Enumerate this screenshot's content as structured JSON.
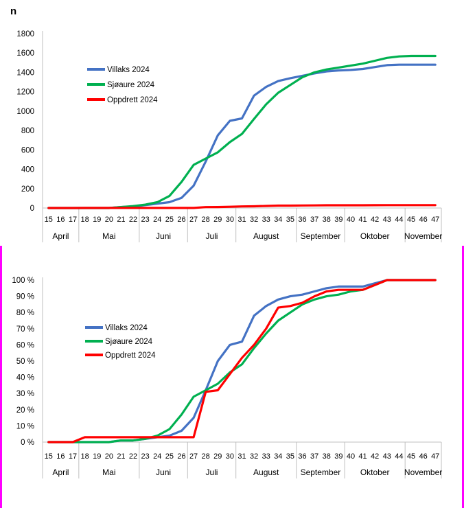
{
  "page": {
    "background": "#FFFFFF",
    "selection_border_color": "#FF00FF",
    "axis_color": "#BFBFBF"
  },
  "chart_data": [
    {
      "type": "line",
      "y_axis_title": "n",
      "ylim": [
        0,
        1800
      ],
      "y_ticks": [
        "0",
        "200",
        "400",
        "600",
        "800",
        "1000",
        "1200",
        "1400",
        "1600",
        "1800"
      ],
      "week_labels": [
        "15",
        "16",
        "17",
        "18",
        "19",
        "20",
        "21",
        "22",
        "23",
        "24",
        "25",
        "26",
        "27",
        "28",
        "29",
        "30",
        "31",
        "32",
        "33",
        "34",
        "35",
        "36",
        "37",
        "38",
        "39",
        "40",
        "41",
        "42",
        "43",
        "44",
        "45",
        "46",
        "47"
      ],
      "month_groups": [
        {
          "label": "April",
          "span": 3
        },
        {
          "label": "Mai",
          "span": 5
        },
        {
          "label": "Juni",
          "span": 4
        },
        {
          "label": "Juli",
          "span": 4
        },
        {
          "label": "August",
          "span": 5
        },
        {
          "label": "September",
          "span": 4
        },
        {
          "label": "Oktober",
          "span": 5
        },
        {
          "label": "November",
          "span": 3
        }
      ],
      "legend_position": "upper-left-inside",
      "grid": false,
      "series": [
        {
          "name": "Villaks 2024",
          "color": "#4472C4",
          "values": [
            0,
            0,
            0,
            0,
            0,
            0,
            10,
            15,
            30,
            45,
            60,
            105,
            230,
            480,
            750,
            900,
            925,
            1160,
            1250,
            1310,
            1340,
            1365,
            1390,
            1410,
            1420,
            1425,
            1435,
            1455,
            1475,
            1480,
            1480,
            1480,
            1480
          ]
        },
        {
          "name": "Sjøaure 2024",
          "color": "#00B050",
          "values": [
            0,
            0,
            0,
            0,
            0,
            0,
            10,
            20,
            35,
            60,
            125,
            270,
            445,
            510,
            575,
            680,
            765,
            920,
            1070,
            1190,
            1270,
            1350,
            1400,
            1430,
            1450,
            1470,
            1490,
            1520,
            1550,
            1565,
            1570,
            1570,
            1570
          ]
        },
        {
          "name": "Oppdrett 2024",
          "color": "#FF0000",
          "values": [
            0,
            0,
            0,
            1,
            1,
            1,
            1,
            1,
            1,
            1,
            1,
            1,
            1,
            9,
            10,
            13,
            16,
            18,
            21,
            25,
            25,
            26,
            27,
            28,
            28,
            28,
            28,
            29,
            30,
            30,
            30,
            30,
            30
          ]
        }
      ]
    },
    {
      "type": "line",
      "y_axis_title": "",
      "ylim": [
        0,
        100
      ],
      "y_ticks": [
        "0 %",
        "10 %",
        "20 %",
        "30 %",
        "40 %",
        "50 %",
        "60 %",
        "70 %",
        "80 %",
        "90 %",
        "100 %"
      ],
      "week_labels": [
        "15",
        "16",
        "17",
        "18",
        "19",
        "20",
        "21",
        "22",
        "23",
        "24",
        "25",
        "26",
        "27",
        "28",
        "29",
        "30",
        "31",
        "32",
        "33",
        "34",
        "35",
        "36",
        "37",
        "38",
        "39",
        "40",
        "41",
        "42",
        "43",
        "44",
        "45",
        "46",
        "47"
      ],
      "month_groups": [
        {
          "label": "April",
          "span": 3
        },
        {
          "label": "Mai",
          "span": 5
        },
        {
          "label": "Juni",
          "span": 4
        },
        {
          "label": "Juli",
          "span": 4
        },
        {
          "label": "August",
          "span": 5
        },
        {
          "label": "September",
          "span": 4
        },
        {
          "label": "Oktober",
          "span": 5
        },
        {
          "label": "November",
          "span": 3
        }
      ],
      "legend_position": "upper-left-inside",
      "grid": false,
      "series": [
        {
          "name": "Villaks 2024",
          "color": "#4472C4",
          "values": [
            0,
            0,
            0,
            0,
            0,
            0,
            1,
            1,
            2,
            3,
            4,
            7,
            15,
            32,
            50,
            60,
            62,
            78,
            84,
            88,
            90,
            91,
            93,
            95,
            96,
            96,
            96,
            98,
            100,
            100,
            100,
            100,
            100
          ]
        },
        {
          "name": "Sjøaure 2024",
          "color": "#00B050",
          "values": [
            0,
            0,
            0,
            0,
            0,
            0,
            1,
            1,
            2,
            4,
            8,
            17,
            28,
            32,
            36,
            43,
            48,
            58,
            67,
            75,
            80,
            85,
            88,
            90,
            91,
            93,
            94,
            97,
            100,
            100,
            100,
            100,
            100
          ]
        },
        {
          "name": "Oppdrett 2024",
          "color": "#FF0000",
          "values": [
            0,
            0,
            0,
            3,
            3,
            3,
            3,
            3,
            3,
            3,
            3,
            3,
            3,
            31,
            32,
            42,
            52,
            60,
            70,
            83,
            84,
            86,
            90,
            93,
            94,
            94,
            94,
            97,
            100,
            100,
            100,
            100,
            100
          ]
        }
      ]
    }
  ]
}
